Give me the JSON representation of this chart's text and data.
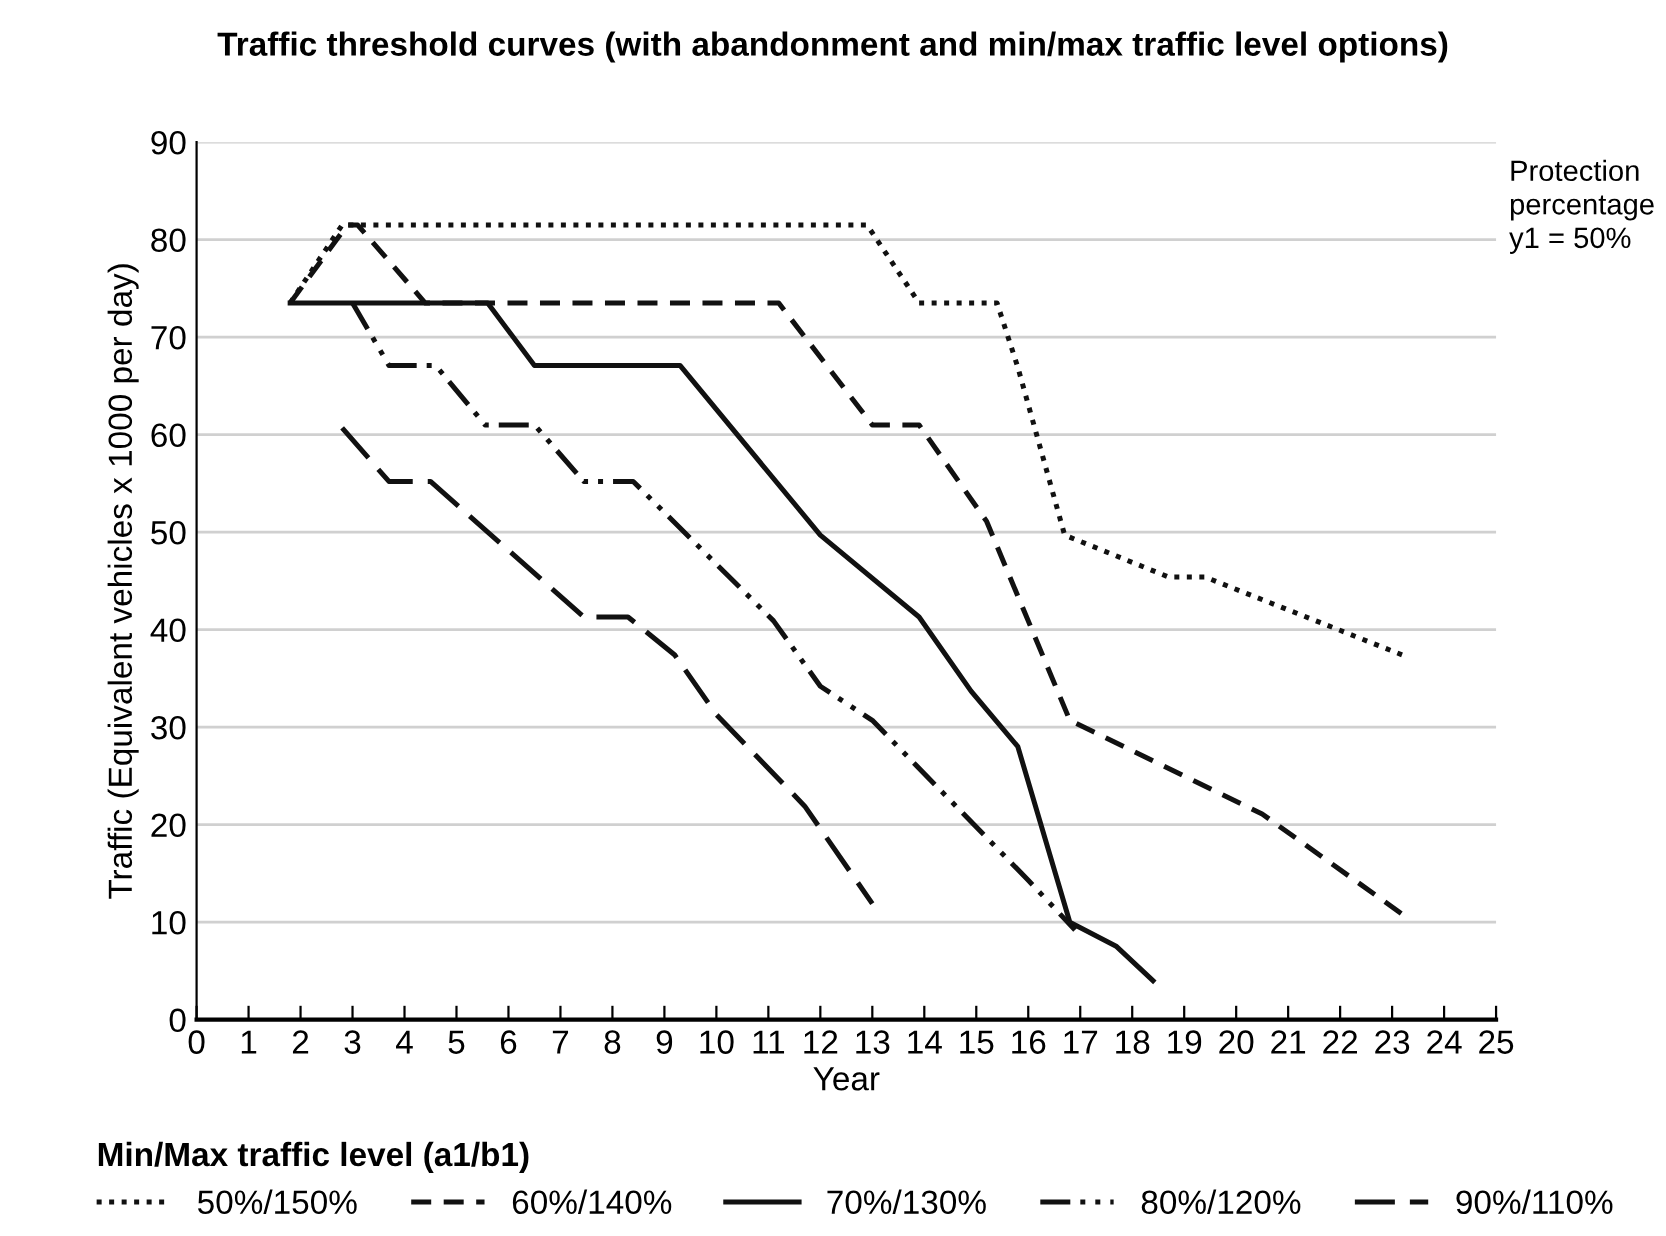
{
  "chart_data": {
    "type": "line",
    "title": "Traffic threshold curves (with abandonment and min/max traffic level options)",
    "xlabel": "Year",
    "ylabel": "Traffic (Equivalent vehicles x 1000 per day)",
    "legend_title": "Min/Max traffic level (a1/b1)",
    "annotations": [
      "Protection\npercentage\ny1 = 50%"
    ],
    "xlim": [
      0,
      25
    ],
    "xticks": [
      0,
      1,
      2,
      3,
      4,
      5,
      6,
      7,
      8,
      9,
      10,
      11,
      12,
      13,
      14,
      15,
      16,
      17,
      18,
      19,
      20,
      21,
      22,
      23,
      24,
      25
    ],
    "ylim": [
      0,
      90
    ],
    "yticks": [
      0,
      10,
      20,
      30,
      40,
      50,
      60,
      70,
      80,
      90
    ],
    "grid": "y",
    "legend": "bottom",
    "marker": "none",
    "series": [
      {
        "name": "50%/150%",
        "color": "#111111",
        "line_style": "dotted",
        "x": [
          1.8,
          2.8,
          12.9,
          13.9,
          15.4,
          15.8,
          16.7,
          18.7,
          19.4,
          23.2
        ],
        "values": [
          73.5,
          81.5,
          81.5,
          73.5,
          73.5,
          66.9,
          49.7,
          45.4,
          45.4,
          37.4
        ]
      },
      {
        "name": "60%/140%",
        "color": "#111111",
        "line_style": "dashed",
        "x": [
          1.8,
          2.9,
          3.1,
          4.4,
          11.2,
          13.0,
          13.9,
          15.2,
          16.8,
          20.5,
          23.2
        ],
        "values": [
          73.5,
          81.5,
          81.5,
          73.5,
          73.5,
          61,
          61,
          51.1,
          30.7,
          21.1,
          10.8
        ]
      },
      {
        "name": "70%/130%",
        "color": "#111111",
        "line_style": "solid",
        "x": [
          1.8,
          5.6,
          6.5,
          9.3,
          12.0,
          13.9,
          14.9,
          15.8,
          16.8,
          17.7,
          18.4
        ],
        "values": [
          73.5,
          73.5,
          67.1,
          67.1,
          49.7,
          41.3,
          33.7,
          28.0,
          10,
          7.5,
          4
        ]
      },
      {
        "name": "80%/120%",
        "color": "#111111",
        "line_style": "dashdot",
        "x": [
          3.0,
          3.7,
          4.6,
          5.55,
          6.5,
          7.45,
          8.4,
          11.1,
          12.0,
          13.0,
          16.0,
          16.9
        ],
        "values": [
          73.5,
          67.1,
          67.1,
          61,
          61,
          55.2,
          55.2,
          40.9,
          34.2,
          30.7,
          14.3,
          9.2
        ]
      },
      {
        "name": "90%/110%",
        "color": "#111111",
        "line_style": "longdash",
        "x": [
          2.8,
          3.7,
          4.5,
          7.45,
          8.3,
          9.2,
          10.0,
          11.7,
          13.0
        ],
        "values": [
          60.7,
          55.2,
          55.2,
          41.3,
          41.3,
          37.4,
          31.3,
          21.9,
          11.9
        ]
      }
    ]
  }
}
